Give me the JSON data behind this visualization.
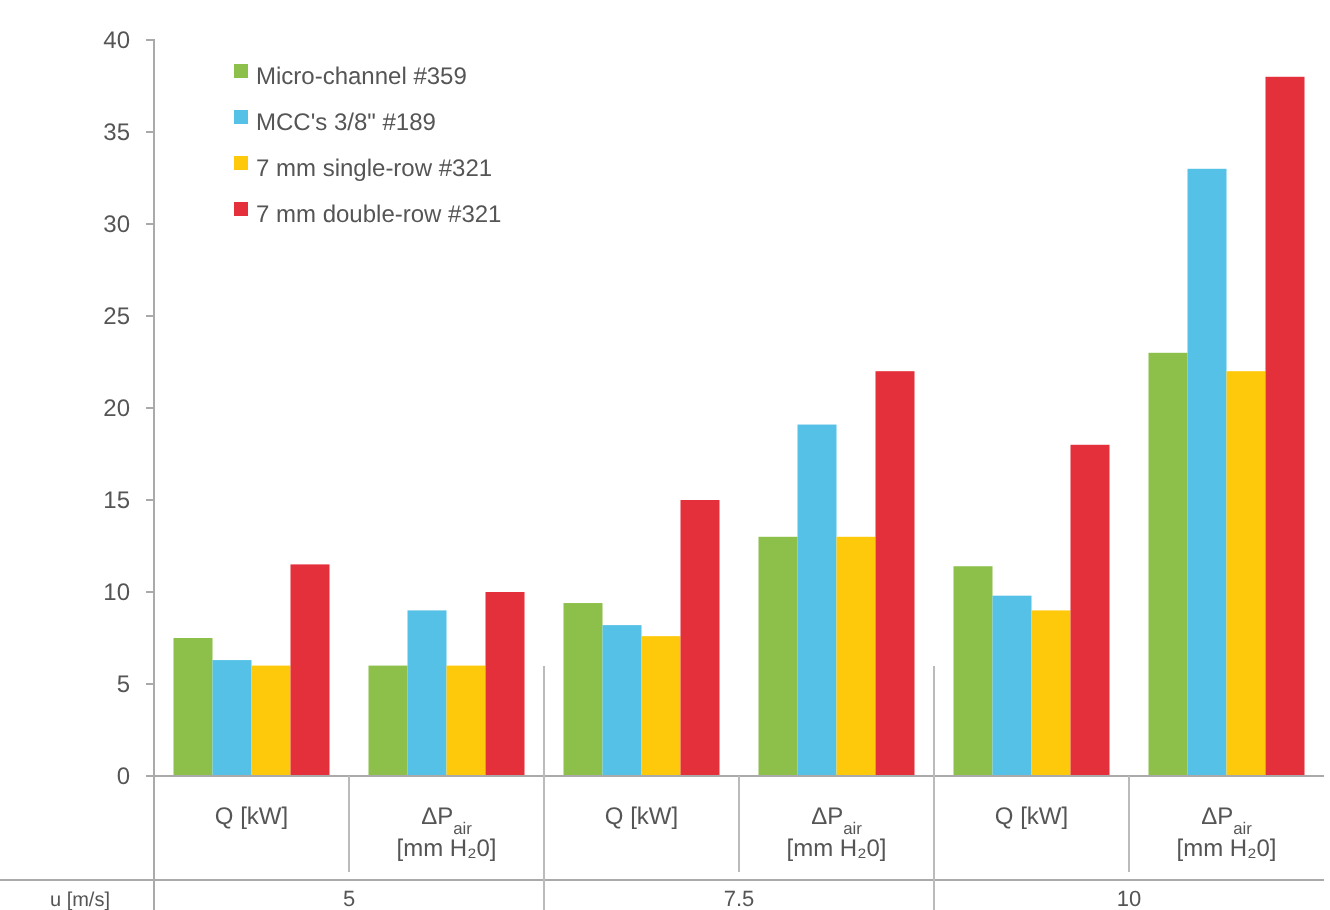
{
  "chart_data": {
    "type": "bar",
    "categories": [
      "Q [kW]",
      "ΔP$_{air}$ [mm H₂0]",
      "Q [kW]",
      "ΔP$_{air}$ [mm H₂0]",
      "Q [kW]",
      "ΔP$_{air}$ [mm H₂0]"
    ],
    "xlabel": "u [m/s]",
    "annotations": [
      "5",
      "7.5",
      "10"
    ],
    "series": [
      {
        "name": "Micro-channel #359",
        "color": "#8dc04b",
        "values": [
          7.5,
          6,
          9.4,
          13,
          11.4,
          23
        ]
      },
      {
        "name": "MCC's 3/8\" #189",
        "color": "#55c1e6",
        "values": [
          6.3,
          9,
          8.2,
          19.1,
          9.8,
          33
        ]
      },
      {
        "name": "7 mm single-row #321",
        "color": "#ffc90b",
        "values": [
          6,
          6,
          7.6,
          13,
          9,
          22
        ]
      },
      {
        "name": "7 mm double-row #321",
        "color": "#e4303a",
        "values": [
          11.5,
          10,
          15,
          22,
          18,
          38
        ]
      }
    ],
    "ylim": [
      0,
      40
    ],
    "yticks": [
      0,
      5,
      10,
      15,
      20,
      25,
      30,
      35,
      40
    ],
    "grid": false,
    "legend": "top left"
  }
}
